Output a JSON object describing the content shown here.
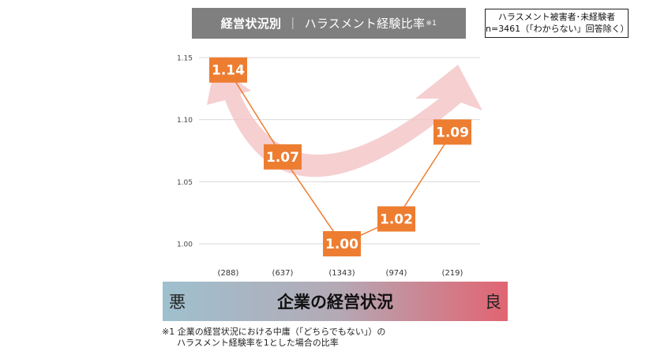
{
  "title": {
    "main": "経営状況別",
    "separator": "｜",
    "sub": "ハラスメント経験比率",
    "note_mark": "※1"
  },
  "respondent_note": {
    "line1": "ハラスメント被害者･未経験者",
    "line2": "n=3461（「わからない」回答除く）"
  },
  "chart_data": {
    "type": "line",
    "categories": [
      "(288)",
      "(637)",
      "(1343)",
      "(974)",
      "(219)"
    ],
    "values": [
      1.14,
      1.07,
      1.0,
      1.02,
      1.09
    ],
    "value_labels": [
      "1.14",
      "1.07",
      "1.00",
      "1.02",
      "1.09"
    ],
    "ylim": [
      1.0,
      1.15
    ],
    "yticks": [
      1.0,
      1.05,
      1.1,
      1.15
    ],
    "ytick_labels": [
      "1.00",
      "1.05",
      "1.10",
      "1.15"
    ],
    "grid": true,
    "line_color": "#ed7d31",
    "label_box_color": "#ed7d31",
    "arrow_color": "#f4c3c6"
  },
  "axis_bar": {
    "left": "悪",
    "center": "企業の経営状況",
    "right": "良"
  },
  "footnote": {
    "line1": "※1  企業の経営状況における中庸（「どちらでもない」）の",
    "line2": "ハラスメント経験率を1とした場合の比率"
  }
}
